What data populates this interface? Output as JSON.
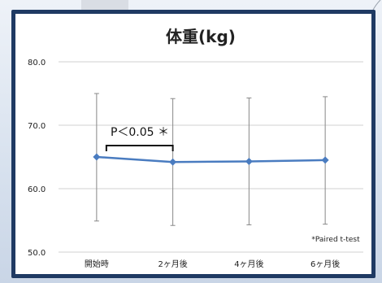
{
  "chart_data": {
    "type": "line",
    "title": "体重(kg)",
    "categories": [
      "開始時",
      "2ヶ月後",
      "4ヶ月後",
      "6ヶ月後"
    ],
    "series": [
      {
        "values": [
          65.0,
          64.2,
          64.3,
          64.5
        ],
        "error_high": [
          75.0,
          74.2,
          74.3,
          74.5
        ],
        "error_low": [
          54.9,
          54.2,
          54.3,
          54.4
        ]
      }
    ],
    "ylim": [
      50.0,
      80.0
    ],
    "yticks": [
      "50.0",
      "60.0",
      "70.0",
      "80.0"
    ],
    "grid": true,
    "colors": {
      "line": "#4a7cc0",
      "error_bar": "#888888",
      "grid": "#d0d0d0"
    },
    "annotations": {
      "significance": "P＜0.05 ＊",
      "footnote": "*Paired t-test"
    }
  }
}
